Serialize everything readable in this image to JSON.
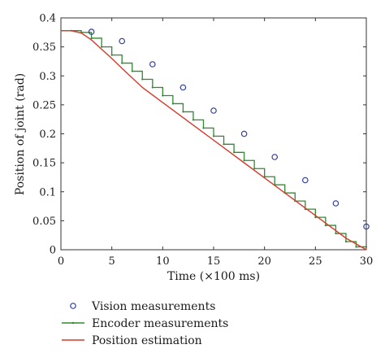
{
  "chart_data": {
    "type": "line",
    "title": "",
    "xlabel": "Time (×100 ms)",
    "ylabel": "Position of joint (rad)",
    "xlim": [
      0,
      30
    ],
    "ylim": [
      0,
      0.4
    ],
    "grid": false,
    "legend_position": "bottom",
    "x_ticks": [
      0,
      5,
      10,
      15,
      20,
      25,
      30
    ],
    "y_ticks": [
      0,
      0.05,
      0.1,
      0.15,
      0.2,
      0.25,
      0.3,
      0.35,
      0.4
    ],
    "x_tick_labels": [
      "0",
      "5",
      "10",
      "15",
      "20",
      "25",
      "30"
    ],
    "y_tick_labels": [
      "0",
      "0.05",
      "0.1",
      "0.15",
      "0.2",
      "0.25",
      "0.3",
      "0.35",
      "0.4"
    ],
    "series": [
      {
        "name": "Vision measurements",
        "type": "scatter",
        "color": "#2e3d9c",
        "marker": "circle",
        "x": [
          3,
          6,
          9,
          12,
          15,
          18,
          21,
          24,
          27,
          30
        ],
        "y": [
          0.376,
          0.36,
          0.32,
          0.28,
          0.24,
          0.2,
          0.16,
          0.12,
          0.08,
          0.04
        ]
      },
      {
        "name": "Encoder measurements",
        "type": "step",
        "color": "#2e8b2e",
        "x": [
          0,
          1,
          2,
          3,
          4,
          5,
          6,
          7,
          8,
          9,
          10,
          11,
          12,
          13,
          14,
          15,
          16,
          17,
          18,
          19,
          20,
          21,
          22,
          23,
          24,
          25,
          26,
          27,
          28,
          29,
          30
        ],
        "y": [
          0.378,
          0.378,
          0.375,
          0.365,
          0.35,
          0.336,
          0.322,
          0.308,
          0.294,
          0.28,
          0.266,
          0.252,
          0.238,
          0.224,
          0.21,
          0.196,
          0.182,
          0.168,
          0.154,
          0.14,
          0.126,
          0.112,
          0.098,
          0.084,
          0.07,
          0.056,
          0.042,
          0.028,
          0.014,
          0.005,
          0.005
        ]
      },
      {
        "name": "Position estimation",
        "type": "line",
        "color": "#d63a2a",
        "x": [
          0,
          1,
          2,
          3,
          4,
          5,
          6,
          8,
          10,
          12,
          14,
          16,
          18,
          20,
          22,
          24,
          26,
          28,
          30
        ],
        "y": [
          0.378,
          0.378,
          0.374,
          0.362,
          0.346,
          0.33,
          0.313,
          0.28,
          0.254,
          0.228,
          0.202,
          0.176,
          0.15,
          0.124,
          0.098,
          0.072,
          0.046,
          0.02,
          0.0
        ]
      }
    ]
  }
}
